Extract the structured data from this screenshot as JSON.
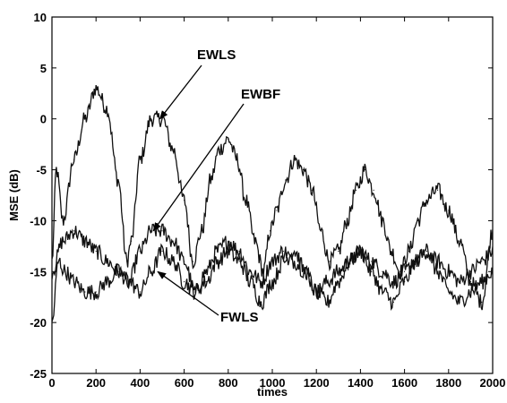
{
  "chart_data": {
    "type": "line",
    "title": "",
    "xlabel": "times",
    "ylabel": "MSE (dB)",
    "xlim": [
      0,
      2000
    ],
    "ylim": [
      -25,
      10
    ],
    "xticks": [
      0,
      200,
      400,
      600,
      800,
      1000,
      1200,
      1400,
      1600,
      1800,
      2000
    ],
    "yticks": [
      10,
      5,
      0,
      -5,
      -10,
      -15,
      -20,
      -25
    ],
    "grid": false,
    "legend": "none",
    "series": [
      {
        "name": "EWLS",
        "x": [
          0,
          20,
          50,
          100,
          150,
          200,
          250,
          300,
          340,
          360,
          400,
          450,
          500,
          550,
          600,
          640,
          680,
          720,
          760,
          800,
          840,
          880,
          920,
          960,
          990,
          1020,
          1060,
          1100,
          1140,
          1180,
          1220,
          1260,
          1300,
          1340,
          1380,
          1420,
          1460,
          1500,
          1540,
          1580,
          1620,
          1660,
          1700,
          1750,
          1800,
          1850,
          1900,
          1950,
          2000
        ],
        "y": [
          -14,
          -5,
          -10,
          -4,
          0,
          3,
          1,
          -6,
          -14,
          -12,
          -4,
          0,
          0,
          -3,
          -8,
          -14,
          -11,
          -6,
          -3,
          -2,
          -4,
          -8,
          -12,
          -15,
          -11,
          -9,
          -6,
          -4,
          -5,
          -7,
          -11,
          -14,
          -13,
          -10,
          -7,
          -5,
          -7,
          -10,
          -13,
          -15,
          -13,
          -10,
          -8,
          -7,
          -9,
          -12,
          -16,
          -18,
          -11
        ]
      },
      {
        "name": "EWBF",
        "x": [
          0,
          50,
          100,
          150,
          200,
          250,
          300,
          350,
          400,
          450,
          500,
          550,
          600,
          650,
          700,
          750,
          800,
          850,
          900,
          950,
          1000,
          1050,
          1100,
          1150,
          1200,
          1250,
          1300,
          1350,
          1400,
          1450,
          1500,
          1550,
          1600,
          1650,
          1700,
          1750,
          1800,
          1850,
          1900,
          1950,
          2000
        ],
        "y": [
          -15,
          -12,
          -11,
          -12,
          -13,
          -14,
          -15,
          -16,
          -13,
          -11,
          -11,
          -12,
          -14,
          -17,
          -15,
          -13,
          -12,
          -13,
          -15,
          -16,
          -14,
          -13,
          -14,
          -15,
          -17,
          -16,
          -15,
          -14,
          -13,
          -14,
          -15,
          -16,
          -15,
          -14,
          -13,
          -14,
          -15,
          -16,
          -15,
          -14,
          -13
        ]
      },
      {
        "name": "FWLS",
        "x": [
          0,
          30,
          60,
          100,
          150,
          200,
          250,
          300,
          350,
          400,
          450,
          500,
          550,
          600,
          650,
          700,
          750,
          800,
          850,
          900,
          950,
          1000,
          1050,
          1100,
          1150,
          1200,
          1250,
          1300,
          1350,
          1400,
          1450,
          1500,
          1550,
          1600,
          1650,
          1700,
          1750,
          1800,
          1850,
          1900,
          1950,
          2000
        ],
        "y": [
          -20,
          -14,
          -15,
          -16,
          -17,
          -17,
          -16,
          -15,
          -16,
          -17,
          -15,
          -13,
          -14,
          -16,
          -17,
          -16,
          -14,
          -13,
          -14,
          -16,
          -18,
          -16,
          -14,
          -13,
          -15,
          -17,
          -18,
          -16,
          -14,
          -13,
          -15,
          -17,
          -18,
          -16,
          -14,
          -13,
          -15,
          -17,
          -18,
          -17,
          -16,
          -15
        ]
      }
    ],
    "annotations": [
      {
        "text": "EWLS",
        "points_to": [
          490,
          0
        ]
      },
      {
        "text": "EWBF",
        "points_to": [
          460,
          -11
        ]
      },
      {
        "text": "FWLS",
        "points_to": [
          480,
          -15
        ]
      }
    ]
  }
}
